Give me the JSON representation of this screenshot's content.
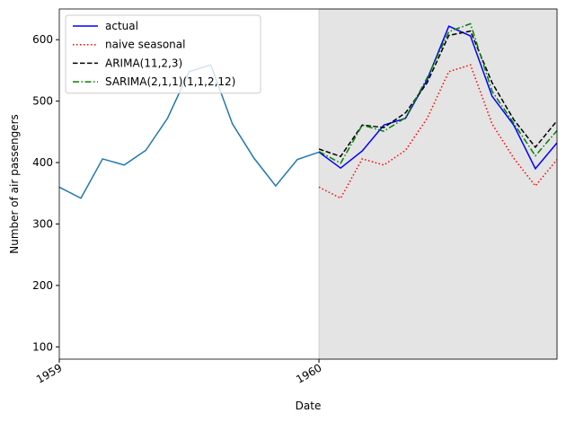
{
  "chart_data": {
    "type": "line",
    "x": [
      "1959-01",
      "1959-02",
      "1959-03",
      "1959-04",
      "1959-05",
      "1959-06",
      "1959-07",
      "1959-08",
      "1959-09",
      "1959-10",
      "1959-11",
      "1959-12",
      "1960-01",
      "1960-02",
      "1960-03",
      "1960-04",
      "1960-05",
      "1960-06",
      "1960-07",
      "1960-08",
      "1960-09",
      "1960-10",
      "1960-11",
      "1960-12"
    ],
    "series": [
      {
        "color": "#1f77b4",
        "linestyle": "solid",
        "values": [
          360,
          342,
          406,
          396,
          420,
          472,
          548,
          559,
          463,
          407,
          362,
          405,
          417,
          null,
          null,
          null,
          null,
          null,
          null,
          null,
          null,
          null,
          null,
          null
        ]
      },
      {
        "name": "actual",
        "color": "#0000ff",
        "linestyle": "solid",
        "values": [
          null,
          null,
          null,
          null,
          null,
          null,
          null,
          null,
          null,
          null,
          null,
          null,
          417,
          391,
          419,
          461,
          472,
          535,
          622,
          606,
          508,
          461,
          390,
          432
        ]
      },
      {
        "name": "naive seasonal",
        "color": "#ff0000",
        "linestyle": "dotted",
        "values": [
          null,
          null,
          null,
          null,
          null,
          null,
          null,
          null,
          null,
          null,
          null,
          null,
          360,
          342,
          406,
          396,
          420,
          472,
          548,
          559,
          463,
          407,
          362,
          405
        ]
      },
      {
        "name": "ARIMA(11,2,3)",
        "color": "#000000",
        "linestyle": "dashed",
        "values": [
          null,
          null,
          null,
          null,
          null,
          null,
          null,
          null,
          null,
          null,
          null,
          null,
          422,
          410,
          461,
          457,
          481,
          530,
          607,
          614,
          530,
          470,
          425,
          468
        ]
      },
      {
        "name": "SARIMA(2,1,1)(1,1,2,12)",
        "color": "#008000",
        "linestyle": "dashdot",
        "values": [
          null,
          null,
          null,
          null,
          null,
          null,
          null,
          null,
          null,
          null,
          null,
          null,
          418,
          399,
          461,
          451,
          473,
          538,
          613,
          626,
          516,
          464,
          411,
          452
        ]
      }
    ],
    "xlabel": "Date",
    "ylabel": "Number of air passengers",
    "xlim": [
      "1959-01",
      "1960-12"
    ],
    "xticks": [
      {
        "value": "1959-01",
        "label": "1959"
      },
      {
        "value": "1960-01",
        "label": "1960"
      }
    ],
    "ylim": [
      80,
      650
    ],
    "yticks": [
      100,
      200,
      300,
      400,
      500,
      600
    ],
    "shade": {
      "range": [
        "1960-01",
        "1960-12"
      ],
      "color": "#e4e4e4"
    },
    "legend": "upper left"
  }
}
